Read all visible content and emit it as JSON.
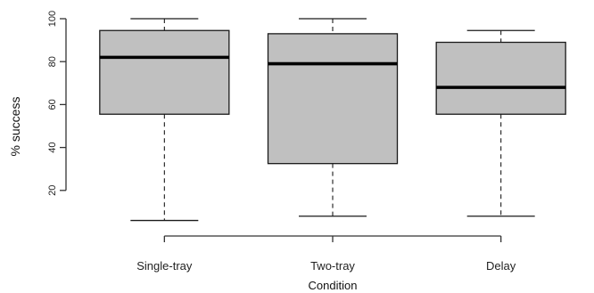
{
  "chart_data": {
    "type": "box",
    "xlabel": "Condition",
    "ylabel": "% success",
    "ylim": [
      0,
      100
    ],
    "yticks": [
      20,
      40,
      60,
      80,
      100
    ],
    "categories": [
      "Single-tray",
      "Two-tray",
      "Delay"
    ],
    "boxes": [
      {
        "category": "Single-tray",
        "min": 6,
        "q1": 55.5,
        "median": 82,
        "q3": 94.5,
        "max": 100
      },
      {
        "category": "Two-tray",
        "min": 8,
        "q1": 32.5,
        "median": 79,
        "q3": 93,
        "max": 100
      },
      {
        "category": "Delay",
        "min": 8,
        "q1": 55.5,
        "median": 68,
        "q3": 89,
        "max": 94.5
      }
    ],
    "colors": {
      "box_fill": "#c0c0c0",
      "stroke": "#1a1a1a"
    },
    "grid": false,
    "legend": "none"
  }
}
